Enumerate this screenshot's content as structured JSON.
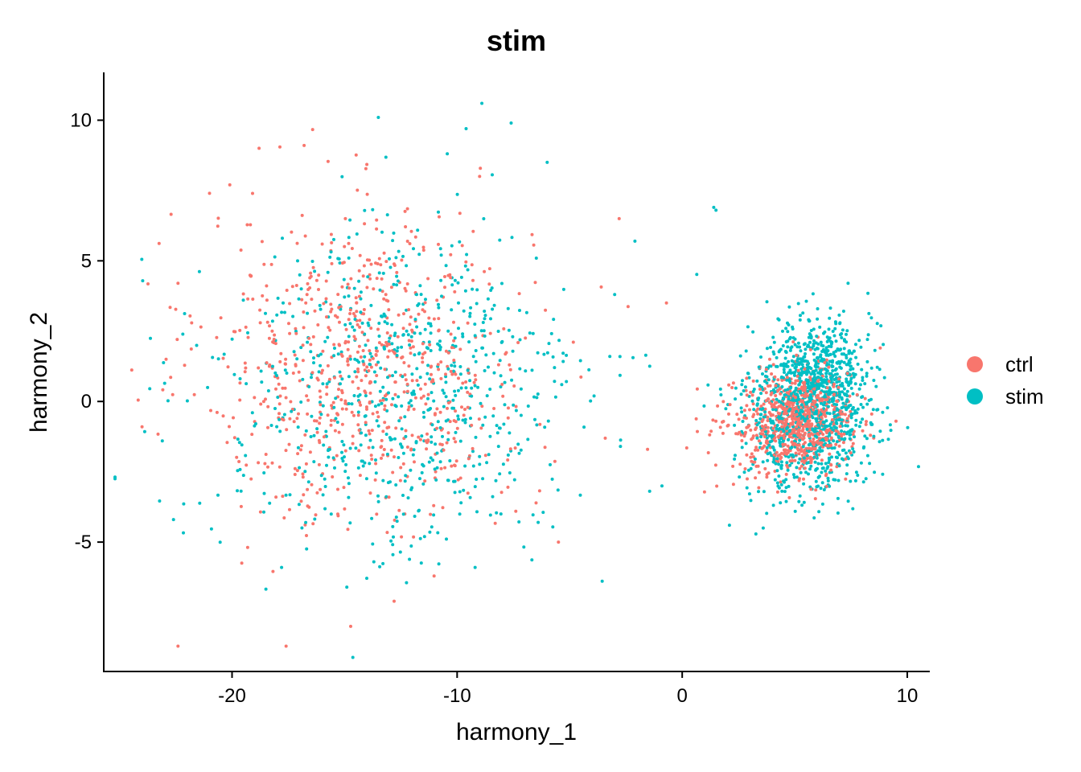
{
  "chart_data": {
    "type": "scatter",
    "title": "stim",
    "xlabel": "harmony_1",
    "ylabel": "harmony_2",
    "xlim": [
      -25.7,
      11.0
    ],
    "ylim": [
      -9.6,
      11.7
    ],
    "xticks": [
      -20,
      -10,
      0,
      10
    ],
    "xtick_labels": [
      "-20",
      "-10",
      "0",
      "10"
    ],
    "yticks": [
      -5,
      0,
      5,
      10
    ],
    "ytick_labels": [
      "-5",
      "0",
      "5",
      "10"
    ],
    "grid": false,
    "legend_position": "right",
    "series": [
      {
        "name": "ctrl",
        "color": "#F8766D",
        "clusters": [
          {
            "cx": -14.0,
            "cy": 1.2,
            "sx": 3.6,
            "sy": 2.8,
            "n": 720
          },
          {
            "cx": 5.3,
            "cy": -0.7,
            "sx": 1.1,
            "sy": 0.9,
            "n": 750
          },
          {
            "cx": 2.6,
            "cy": -1.0,
            "sx": 1.0,
            "sy": 0.8,
            "n": 60
          }
        ],
        "outliers": [
          [
            -22.4,
            -8.7
          ],
          [
            -17.6,
            -8.7
          ],
          [
            -24.0,
            -0.9
          ],
          [
            -22.4,
            4.2
          ],
          [
            -18.8,
            9.0
          ],
          [
            -16.8,
            9.1
          ],
          [
            -20.1,
            7.7
          ],
          [
            -21.0,
            7.4
          ],
          [
            -9.0,
            8.0
          ],
          [
            -2.8,
            6.5
          ],
          [
            -0.7,
            3.5
          ],
          [
            8.8,
            1.9
          ],
          [
            9.5,
            -0.7
          ],
          [
            -12.8,
            -7.1
          ],
          [
            -5.5,
            -5.0
          ]
        ]
      },
      {
        "name": "stim",
        "color": "#00BFC4",
        "clusters": [
          {
            "cx": -12.6,
            "cy": 0.3,
            "sx": 4.2,
            "sy": 3.0,
            "n": 720
          },
          {
            "cx": 5.6,
            "cy": -0.3,
            "sx": 1.4,
            "sy": 1.5,
            "n": 950
          },
          {
            "cx": 6.3,
            "cy": 1.1,
            "sx": 0.8,
            "sy": 0.8,
            "n": 260
          }
        ],
        "outliers": [
          [
            -8.9,
            10.6
          ],
          [
            -13.5,
            10.1
          ],
          [
            -9.6,
            9.7
          ],
          [
            -7.6,
            9.9
          ],
          [
            -6.0,
            8.5
          ],
          [
            1.4,
            6.9
          ],
          [
            1.5,
            6.8
          ],
          [
            -23.1,
            -1.4
          ],
          [
            -22.6,
            -4.2
          ],
          [
            -2.1,
            5.7
          ],
          [
            -3.0,
            3.8
          ],
          [
            -0.9,
            -3.0
          ],
          [
            2.1,
            -4.4
          ],
          [
            3.6,
            -4.5
          ],
          [
            -6.4,
            -4.3
          ],
          [
            -13.7,
            -5.7
          ],
          [
            -14.9,
            -6.6
          ],
          [
            -17.8,
            -5.9
          ],
          [
            -9.2,
            -5.9
          ]
        ]
      }
    ]
  }
}
